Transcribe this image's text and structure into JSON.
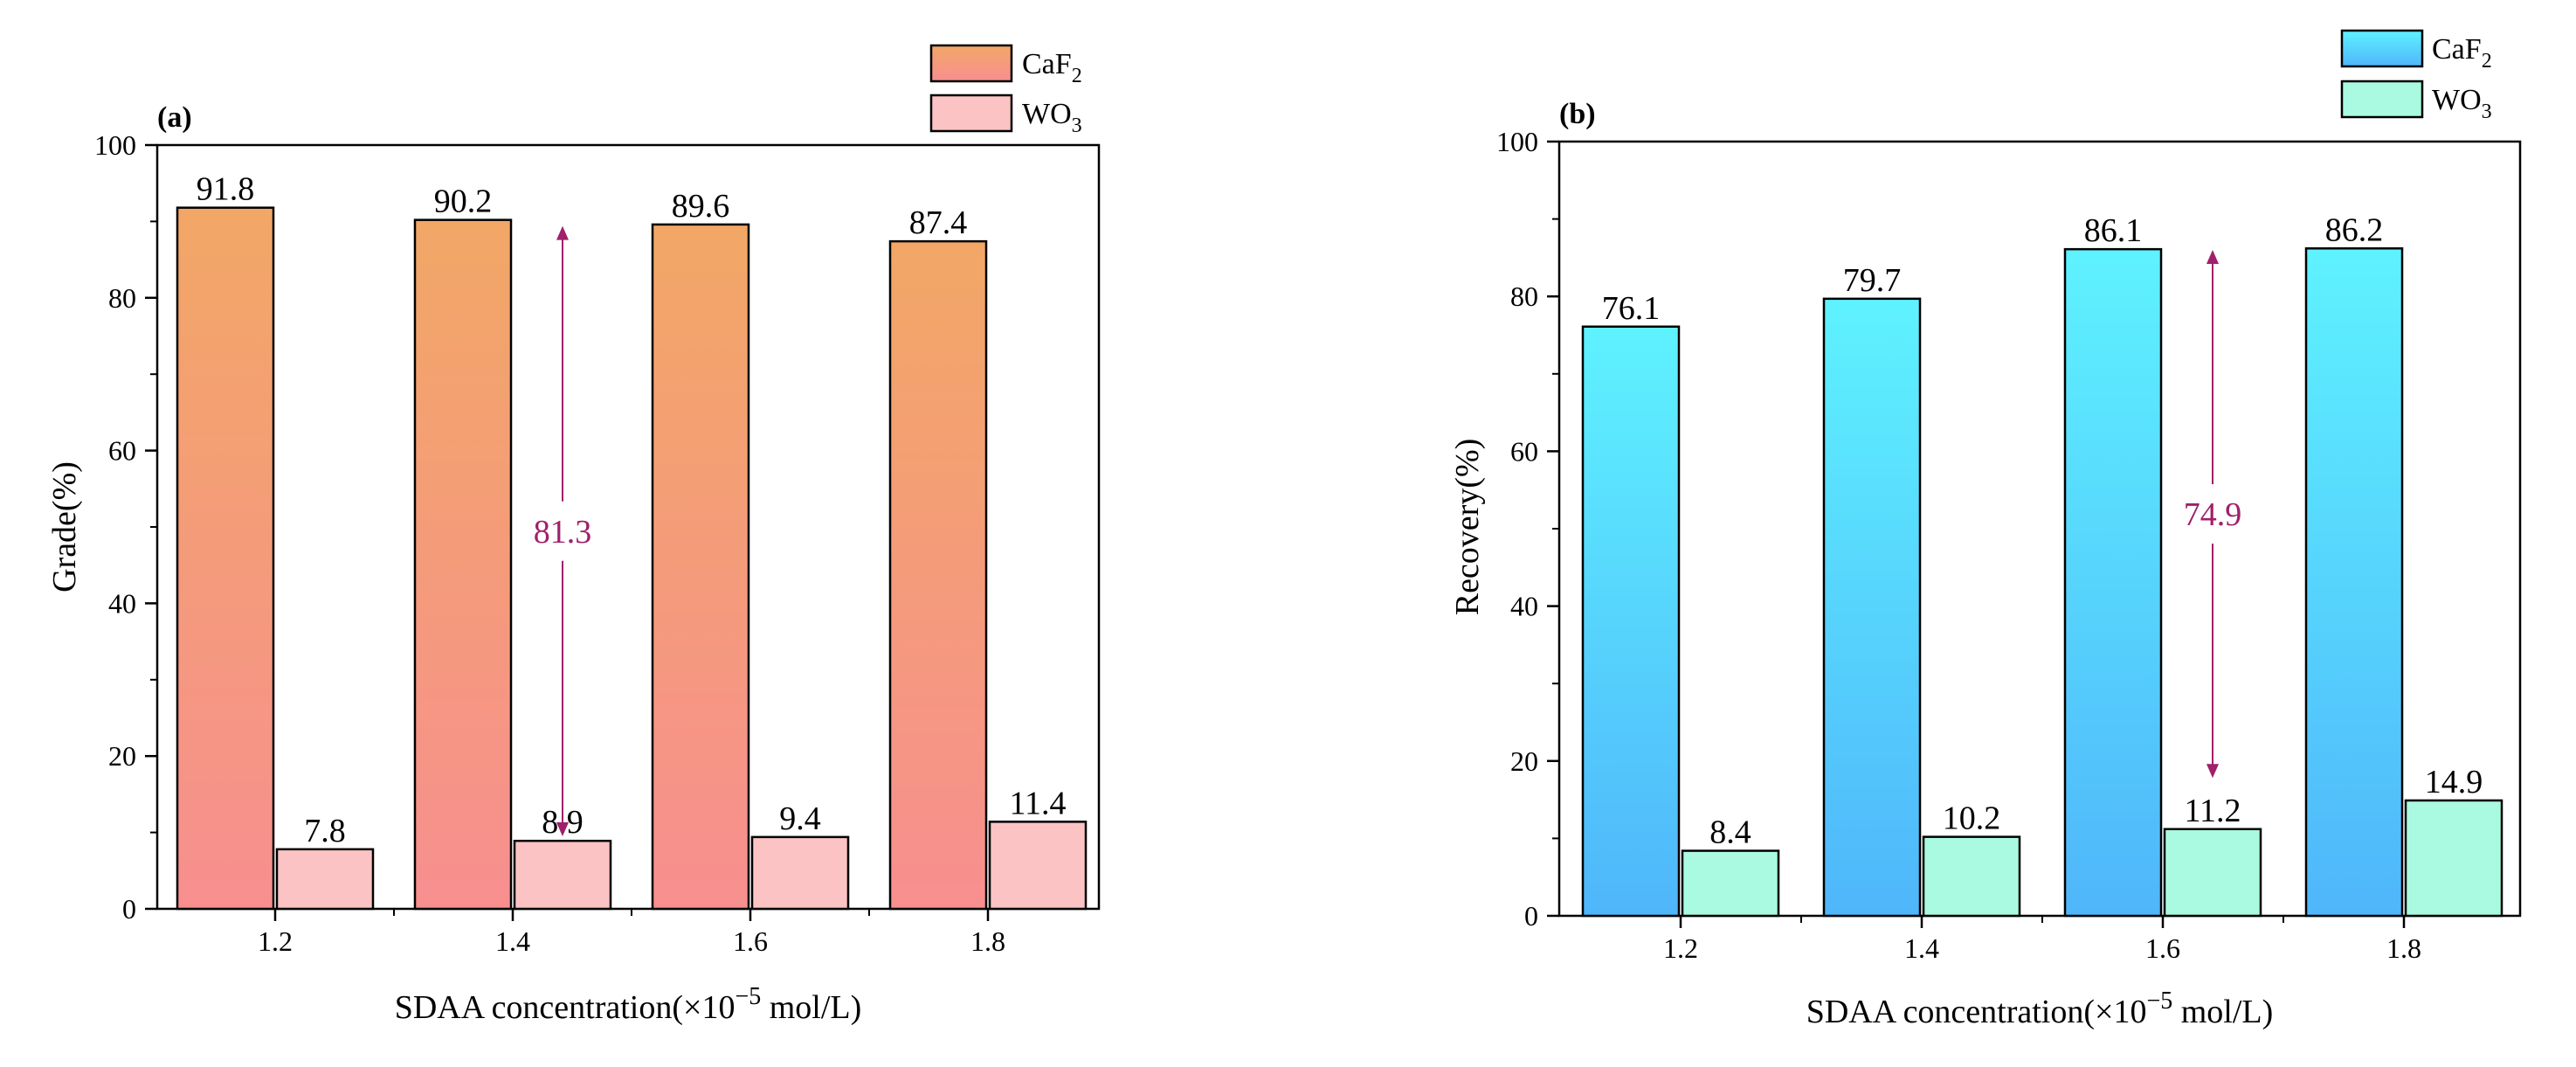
{
  "chart_data": [
    {
      "type": "bar",
      "panel_label": "(a)",
      "categories": [
        "1.2",
        "1.4",
        "1.6",
        "1.8"
      ],
      "series": [
        {
          "name": "CaF",
          "name_sub": "2",
          "values": [
            91.8,
            90.2,
            89.6,
            87.4
          ],
          "value_labels": [
            "91.8",
            "90.2",
            "89.6",
            "87.4"
          ],
          "color_top": "#f2a766",
          "color_bottom": "#f78f8f"
        },
        {
          "name": "WO",
          "name_sub": "3",
          "values": [
            7.8,
            8.9,
            9.4,
            11.4
          ],
          "value_labels": [
            "7.8",
            "8.9",
            "9.4",
            "11.4"
          ],
          "color_top": "#fbc3c3",
          "color_bottom": "#fbc3c3"
        }
      ],
      "ylim": [
        0,
        100
      ],
      "yticks": [
        "0",
        "20",
        "40",
        "60",
        "80",
        "100"
      ],
      "ylabel": "Grade(%)",
      "xlabel": "SDAA concentration(×10",
      "xlabel_sup": "−5",
      "xlabel_tail": " mol/L)",
      "legend": "top-right, outside",
      "annotation": {
        "label": "81.3",
        "category_index": 1,
        "from": 89.4,
        "to": 9.5,
        "color": "#a0206a"
      }
    },
    {
      "type": "bar",
      "panel_label": "(b)",
      "categories": [
        "1.2",
        "1.4",
        "1.6",
        "1.8"
      ],
      "series": [
        {
          "name": "CaF",
          "name_sub": "2",
          "values": [
            76.1,
            79.7,
            86.1,
            86.2
          ],
          "value_labels": [
            "76.1",
            "79.7",
            "86.1",
            "86.2"
          ],
          "color_top": "#5ef2ff",
          "color_bottom": "#4fb6fa"
        },
        {
          "name": "WO",
          "name_sub": "3",
          "values": [
            8.4,
            10.2,
            11.2,
            14.9
          ],
          "value_labels": [
            "8.4",
            "10.2",
            "11.2",
            "14.9"
          ],
          "color_top": "#a9fae0",
          "color_bottom": "#a9fae0"
        }
      ],
      "ylim": [
        0,
        100
      ],
      "yticks": [
        "0",
        "20",
        "40",
        "60",
        "80",
        "100"
      ],
      "ylabel": "Recovery(%)",
      "xlabel": "SDAA concentration(×10",
      "xlabel_sup": "−5",
      "xlabel_tail": " mol/L)",
      "legend": "top-right, outside",
      "annotation": {
        "label": "74.9",
        "category_index": 2,
        "from": 86.0,
        "to": 17.8,
        "color": "#a0206a"
      }
    }
  ]
}
